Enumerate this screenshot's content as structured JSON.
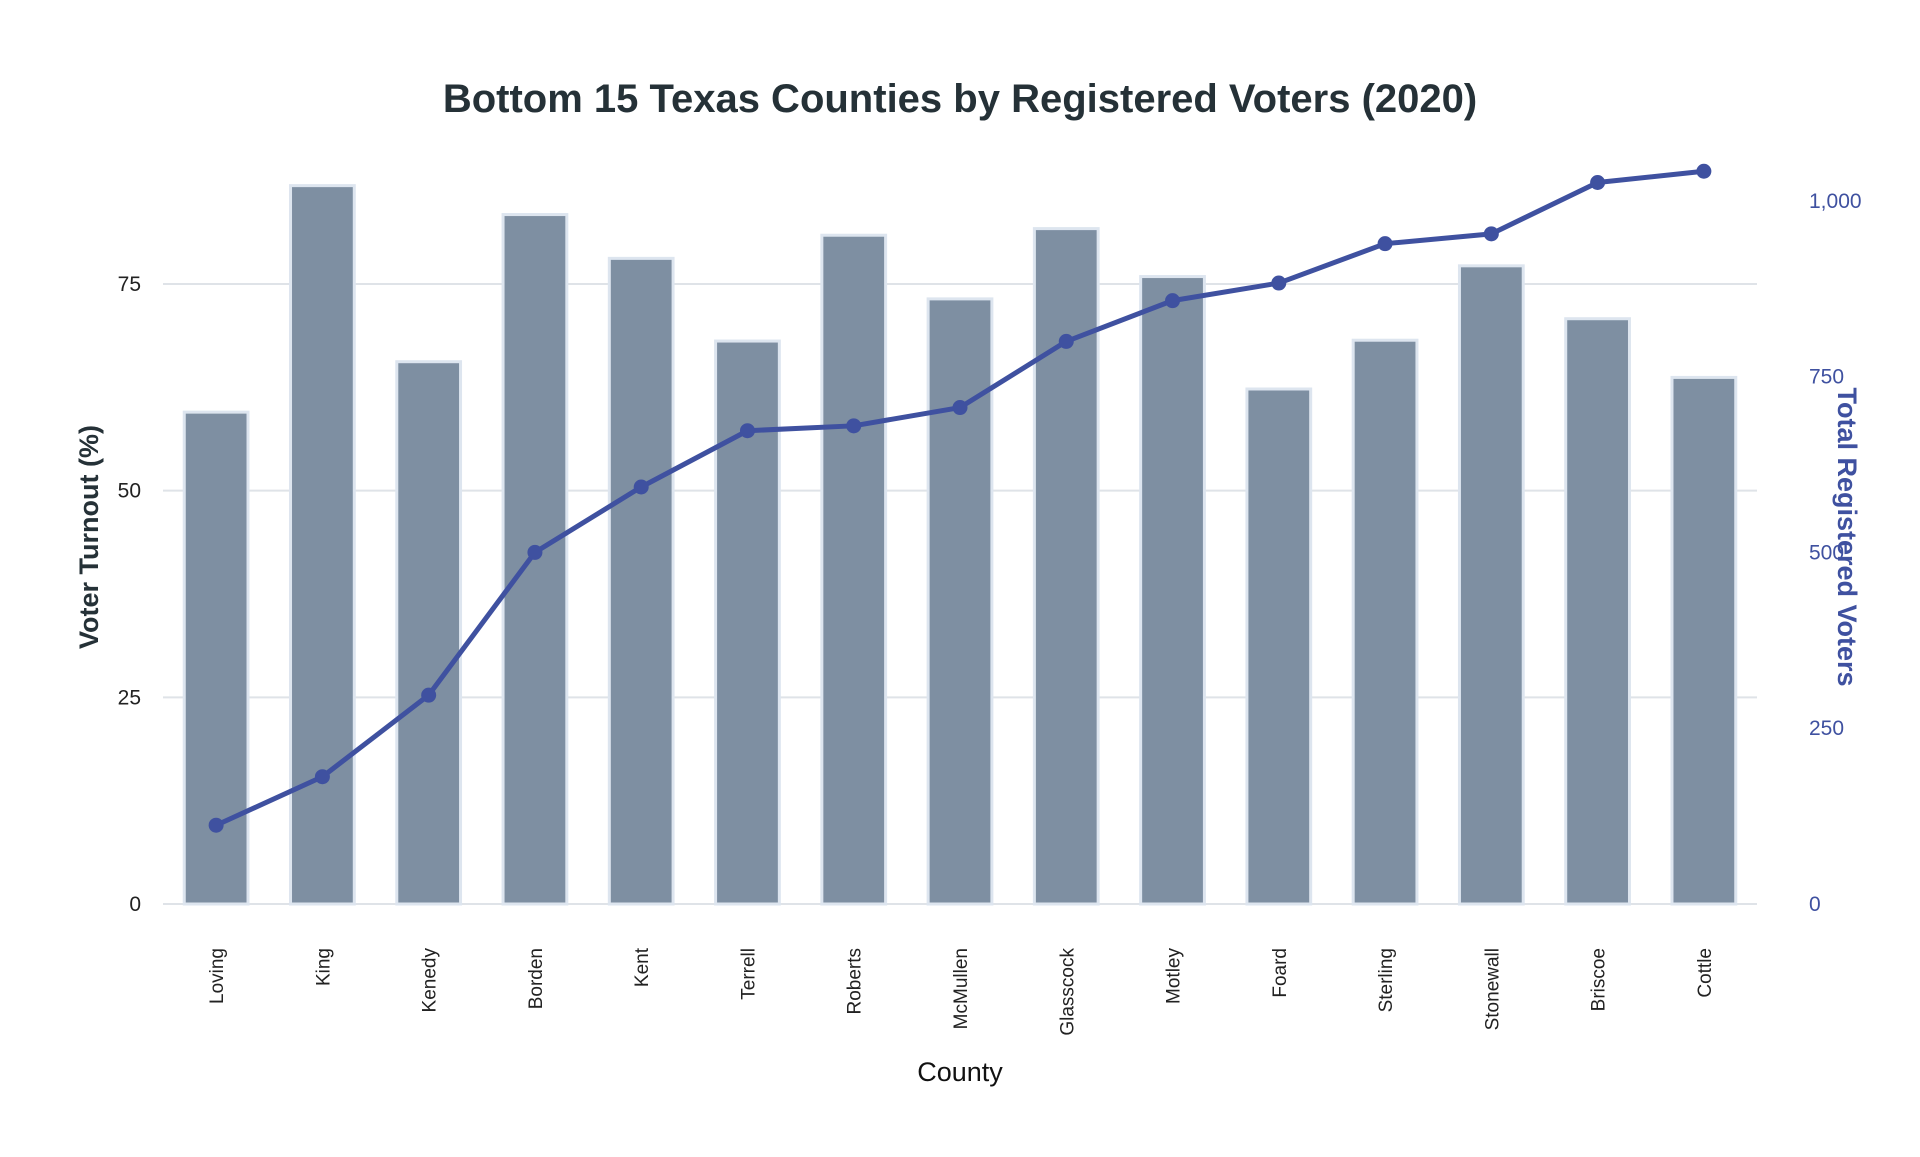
{
  "chart_data": {
    "type": "bar",
    "title": "Bottom 15 Texas Counties by Registered Voters (2020)",
    "xlabel": "County",
    "ylabel": "Voter Turnout (%)",
    "y2label": "Total Registered Voters",
    "categories": [
      "Loving",
      "King",
      "Kenedy",
      "Borden",
      "Kent",
      "Terrell",
      "Roberts",
      "McMullen",
      "Glasscock",
      "Motley",
      "Foard",
      "Sterling",
      "Stonewall",
      "Briscoe",
      "Cottle"
    ],
    "series": [
      {
        "type": "bar",
        "axis": "left",
        "values": [
          59.5,
          86.9,
          65.6,
          83.4,
          78.1,
          68.1,
          80.9,
          73.2,
          81.7,
          75.9,
          62.3,
          68.2,
          77.2,
          70.8,
          63.7
        ]
      },
      {
        "type": "line",
        "axis": "right",
        "values": [
          112,
          181,
          297,
          500,
          593,
          673,
          680,
          706,
          800,
          858,
          883,
          939,
          953,
          1026,
          1042
        ]
      }
    ],
    "ylim": [
      0,
      90
    ],
    "y2lim": [
      0,
      1058
    ],
    "yticks": [
      0,
      25,
      50,
      75
    ],
    "y2ticks": [
      0,
      250,
      500,
      750,
      1000
    ],
    "y2ticklabels": [
      "0",
      "250",
      "500",
      "750",
      "1,000"
    ],
    "grid": true,
    "colors": {
      "bar": "#7e8fa2",
      "bar_outline": "#dde5ef",
      "line": "#3f51a0",
      "right_axis": "#3f51a0",
      "title": "#253137",
      "grid": "#dfe3e8"
    }
  }
}
